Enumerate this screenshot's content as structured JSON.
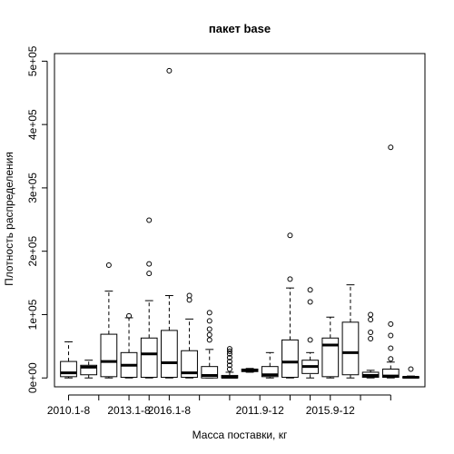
{
  "chart_data": {
    "type": "boxplot",
    "title": "пакет base",
    "xlabel": "Масса поставки, кг",
    "ylabel": "Плотность распределения",
    "ylim": [
      0,
      500000
    ],
    "y_ticks": [
      0,
      100000,
      200000,
      300000,
      400000,
      500000
    ],
    "y_tick_labels": [
      "0e+00",
      "1e+05",
      "2e+05",
      "3e+05",
      "4e+05",
      "5e+05"
    ],
    "x_tick_labels": [
      "2010.1-8",
      "",
      "2013.1-8",
      "",
      "2016.1-8",
      "",
      "",
      "2011.9-12",
      "",
      "",
      "2015.9-12",
      "",
      ""
    ],
    "x_tick_positions": [
      1,
      2.5,
      4,
      5,
      6,
      7.5,
      9,
      10.5,
      12,
      13,
      14,
      15.5,
      17
    ],
    "boxes": [
      {
        "pos": 1,
        "min": 0,
        "q1": 2000,
        "median": 8000,
        "q3": 26000,
        "max": 57000,
        "outliers": []
      },
      {
        "pos": 2,
        "min": 0,
        "q1": 5000,
        "median": 17000,
        "q3": 20000,
        "max": 28000,
        "outliers": []
      },
      {
        "pos": 3,
        "min": 0,
        "q1": 2000,
        "median": 26000,
        "q3": 69000,
        "max": 137000,
        "outliers": [
          178000
        ]
      },
      {
        "pos": 4,
        "min": 0,
        "q1": 1000,
        "median": 20000,
        "q3": 40000,
        "max": 95000,
        "outliers": [
          98000
        ]
      },
      {
        "pos": 5,
        "min": 0,
        "q1": 1000,
        "median": 38000,
        "q3": 63000,
        "max": 122000,
        "outliers": [
          165000,
          180000,
          249000
        ]
      },
      {
        "pos": 6,
        "min": 0,
        "q1": 1000,
        "median": 24000,
        "q3": 75000,
        "max": 130000,
        "outliers": [
          485000
        ]
      },
      {
        "pos": 7,
        "min": 0,
        "q1": 1000,
        "median": 8000,
        "q3": 43000,
        "max": 93000,
        "outliers": [
          123000,
          130000
        ]
      },
      {
        "pos": 8,
        "min": 0,
        "q1": 0,
        "median": 4000,
        "q3": 18000,
        "max": 45000,
        "outliers": [
          60000,
          68000,
          77000,
          90000,
          103000
        ]
      },
      {
        "pos": 9,
        "min": 0,
        "q1": 0,
        "median": 1000,
        "q3": 4000,
        "max": 9000,
        "outliers": [
          14000,
          20000,
          26000,
          32000,
          38000,
          42000,
          46000
        ]
      },
      {
        "pos": 10,
        "min": 9000,
        "q1": 10000,
        "median": 12000,
        "q3": 14000,
        "max": 15000,
        "outliers": []
      },
      {
        "pos": 11,
        "min": 0,
        "q1": 2000,
        "median": 5000,
        "q3": 18000,
        "max": 40000,
        "outliers": []
      },
      {
        "pos": 12,
        "min": 0,
        "q1": 1000,
        "median": 25000,
        "q3": 60000,
        "max": 142000,
        "outliers": [
          156000,
          225000
        ]
      },
      {
        "pos": 13,
        "min": 0,
        "q1": 7000,
        "median": 18000,
        "q3": 28000,
        "max": 40000,
        "outliers": [
          60000,
          120000,
          139000
        ]
      },
      {
        "pos": 14,
        "min": 0,
        "q1": 2000,
        "median": 52000,
        "q3": 63000,
        "max": 96000,
        "outliers": []
      },
      {
        "pos": 15,
        "min": 0,
        "q1": 5000,
        "median": 40000,
        "q3": 88000,
        "max": 147000,
        "outliers": []
      },
      {
        "pos": 16,
        "min": 0,
        "q1": 1000,
        "median": 4000,
        "q3": 9000,
        "max": 12000,
        "outliers": [
          62000,
          72000,
          92000,
          100000
        ]
      },
      {
        "pos": 17,
        "min": 0,
        "q1": 1000,
        "median": 3000,
        "q3": 14000,
        "max": 25000,
        "outliers": [
          30000,
          47000,
          67000,
          85000,
          364000
        ]
      },
      {
        "pos": 18,
        "min": 0,
        "q1": 0,
        "median": 1000,
        "q3": 2000,
        "max": 3000,
        "outliers": [
          14000
        ]
      }
    ],
    "grid": false,
    "legend": "none"
  }
}
